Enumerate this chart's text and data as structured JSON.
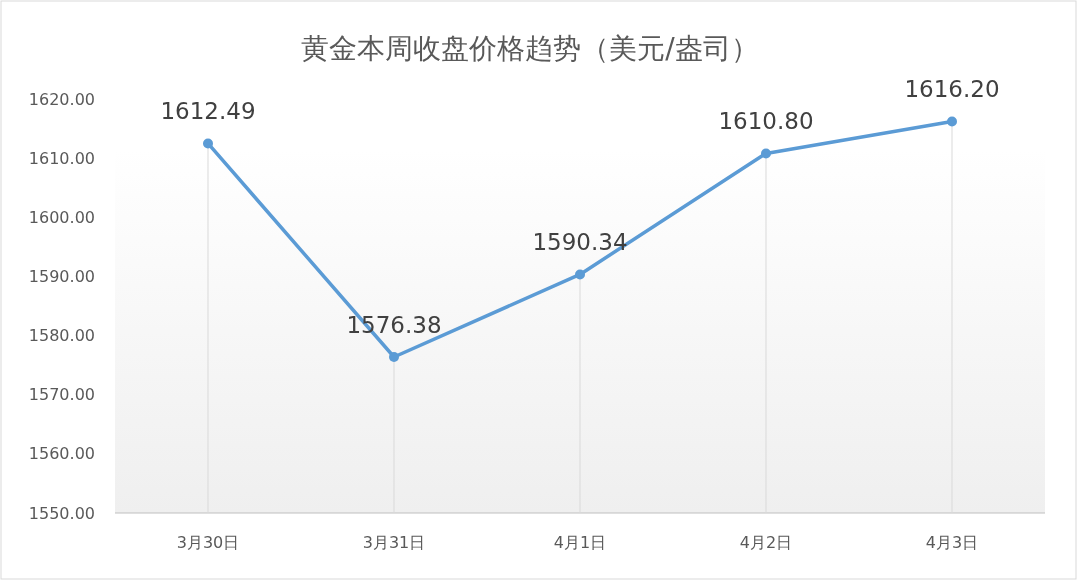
{
  "chart_data": {
    "type": "line",
    "title": "黄金本周收盘价格趋势（美元/盎司）",
    "categories": [
      "3月30日",
      "3月31日",
      "4月1日",
      "4月2日",
      "4月3日"
    ],
    "series": [
      {
        "color": "#5b9bd5",
        "values": [
          1612.49,
          1576.38,
          1590.34,
          1610.8,
          1616.2
        ]
      }
    ],
    "value_labels": [
      "1612.49",
      "1576.38",
      "1590.34",
      "1610.80",
      "1616.20"
    ],
    "ylim": [
      1550,
      1620
    ],
    "yticks": [
      {
        "value": 1550,
        "label": "1550.00"
      },
      {
        "value": 1560,
        "label": "1560.00"
      },
      {
        "value": 1570,
        "label": "1570.00"
      },
      {
        "value": 1580,
        "label": "1580.00"
      },
      {
        "value": 1590,
        "label": "1590.00"
      },
      {
        "value": 1600,
        "label": "1600.00"
      },
      {
        "value": 1610,
        "label": "1610.00"
      },
      {
        "value": 1620,
        "label": "1620.00"
      }
    ],
    "grid": "x",
    "marker": "circle",
    "line_style": "solid"
  }
}
